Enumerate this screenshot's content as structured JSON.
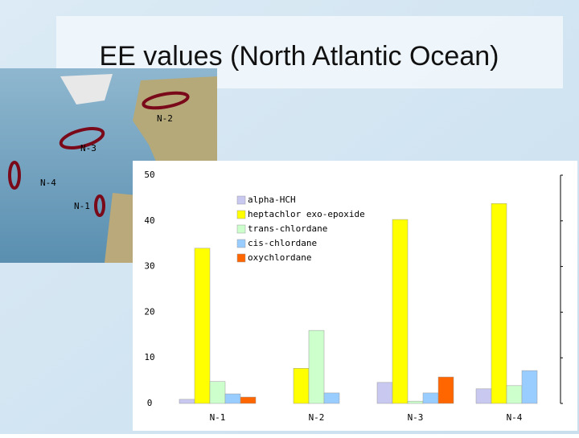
{
  "chart_data": {
    "type": "bar",
    "title": "EE values (North Atlantic Ocean)",
    "categories": [
      "N-1",
      "N-2",
      "N-3",
      "N-4"
    ],
    "series": [
      {
        "name": "alpha-HCH",
        "color": "#c8c8f0",
        "values": [
          0.9,
          0,
          4.6,
          3.2
        ]
      },
      {
        "name": "heptachlor exo-epoxide",
        "color": "#ffff00",
        "values": [
          34,
          7.7,
          40.3,
          43.8
        ]
      },
      {
        "name": "trans-chlordane",
        "color": "#ccffcc",
        "values": [
          4.8,
          16,
          0.5,
          3.9
        ]
      },
      {
        "name": "cis-chlordane",
        "color": "#99ccff",
        "values": [
          2.1,
          2.3,
          2.3,
          7.2
        ]
      },
      {
        "name": "oxychlordane",
        "color": "#ff6600",
        "values": [
          1.4,
          0,
          5.8,
          0
        ]
      }
    ],
    "ylim": [
      0,
      50
    ],
    "yticks": [
      0,
      10,
      20,
      30,
      40,
      50
    ],
    "grid": false,
    "legend": "top-right"
  },
  "map": {
    "labels": [
      "N-2",
      "N-3",
      "N-4",
      "N-1"
    ]
  }
}
